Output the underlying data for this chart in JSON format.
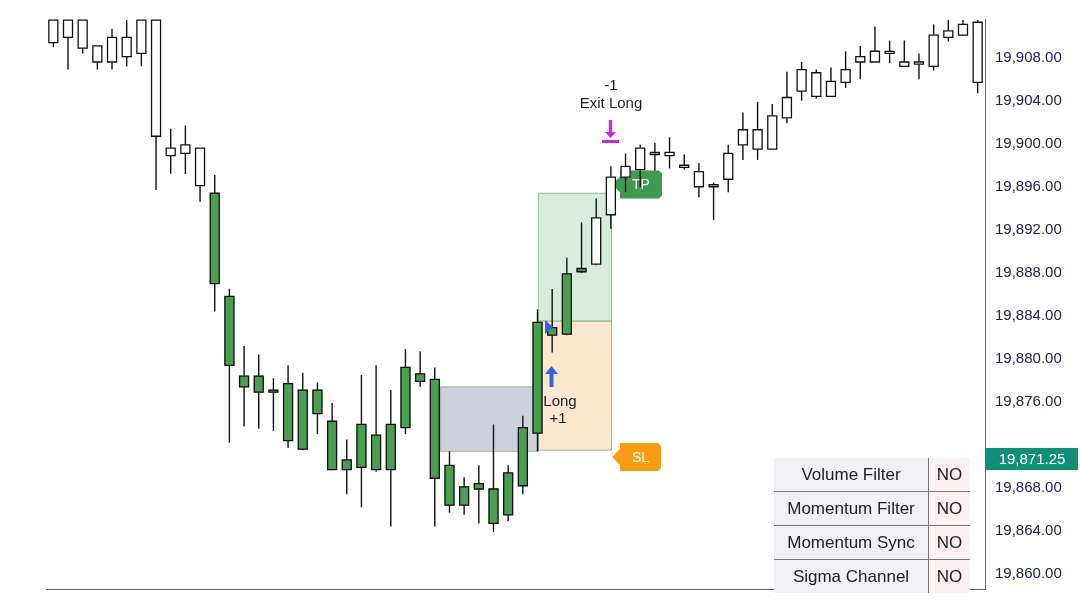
{
  "chart_data": [
    {
      "type": "candlestick",
      "categories": [
        null,
        null,
        null,
        null,
        null,
        null,
        null,
        null,
        null,
        null,
        null,
        null,
        null,
        null,
        null,
        null,
        null,
        null,
        null,
        null,
        null,
        null,
        null,
        null,
        null,
        null,
        null,
        null,
        null,
        null,
        null,
        null,
        null,
        null,
        null,
        null,
        null,
        null,
        null,
        null,
        null,
        null,
        null,
        null,
        null,
        null,
        null,
        null,
        null,
        null,
        null,
        null,
        null,
        null,
        null,
        null,
        null,
        null,
        null,
        null,
        null,
        null,
        null,
        null
      ],
      "ohlc": [
        [
          19909.4,
          19911.5,
          19909.0,
          19911.5
        ],
        [
          19909.9,
          19911.5,
          19906.9,
          19911.5
        ],
        [
          19908.9,
          19911.5,
          19908.4,
          19911.5
        ],
        [
          19907.6,
          19909.1,
          19906.9,
          19909.1
        ],
        [
          19907.6,
          19910.7,
          19906.9,
          19909.9
        ],
        [
          19908.1,
          19911.5,
          19907.2,
          19909.9
        ],
        [
          19908.4,
          19911.5,
          19907.2,
          19911.5
        ],
        [
          19900.7,
          19911.5,
          19895.7,
          19911.5
        ],
        [
          19898.9,
          19901.4,
          19897.2,
          19899.6
        ],
        [
          19899.1,
          19901.7,
          19897.2,
          19899.9
        ],
        [
          19896.1,
          19899.6,
          19894.6,
          19899.6
        ],
        [
          19895.4,
          19897.1,
          19884.4,
          19887.0
        ],
        [
          19885.8,
          19886.5,
          19872.2,
          19879.4
        ],
        [
          19878.4,
          19881.2,
          19873.7,
          19877.4
        ],
        [
          19878.4,
          19880.4,
          19873.5,
          19876.9
        ],
        [
          19877.1,
          19878.2,
          19873.3,
          19876.9
        ],
        [
          19877.7,
          19879.4,
          19871.7,
          19872.4
        ],
        [
          19877.1,
          19878.7,
          19871.5,
          19871.6
        ],
        [
          19877.1,
          19877.8,
          19873.0,
          19874.9
        ],
        [
          19874.2,
          19875.9,
          19869.7,
          19869.7
        ],
        [
          19870.6,
          19872.5,
          19867.4,
          19869.7
        ],
        [
          19873.9,
          19878.5,
          19866.2,
          19869.9
        ],
        [
          19872.9,
          19879.4,
          19869.5,
          19869.7
        ],
        [
          19873.9,
          19877.1,
          19864.4,
          19869.7
        ],
        [
          19879.2,
          19880.9,
          19873.0,
          19873.6
        ],
        [
          19878.6,
          19880.7,
          19877.4,
          19877.9
        ],
        [
          19878.1,
          19879.2,
          19864.4,
          19868.9
        ],
        [
          19870.1,
          19871.4,
          19865.7,
          19866.4
        ],
        [
          19868.1,
          19869.0,
          19865.5,
          19866.4
        ],
        [
          19868.4,
          19870.1,
          19864.7,
          19867.9
        ],
        [
          19867.9,
          19873.9,
          19863.9,
          19864.7
        ],
        [
          19869.4,
          19870.1,
          19864.9,
          19865.5
        ],
        [
          19873.6,
          19874.7,
          19867.4,
          19868.2
        ],
        [
          19883.4,
          19884.6,
          19871.4,
          19873.1
        ],
        [
          19882.9,
          19886.5,
          19880.6,
          19882.2
        ],
        [
          19887.9,
          19889.4,
          19882.2,
          19882.3
        ],
        [
          19888.4,
          19892.7,
          19888.0,
          19888.1
        ],
        [
          19888.8,
          19894.9,
          19888.7,
          19893.1
        ],
        [
          19893.4,
          19897.9,
          19892.1,
          19896.9
        ],
        [
          19896.9,
          19899.1,
          19895.5,
          19897.9
        ],
        [
          19897.6,
          19899.9,
          19896.0,
          19899.6
        ],
        [
          19899.0,
          19900.1,
          19897.5,
          19899.1
        ],
        [
          19898.9,
          19900.6,
          19897.7,
          19899.2
        ],
        [
          19897.8,
          19899.0,
          19897.6,
          19898.0
        ],
        [
          19896.0,
          19898.2,
          19895.0,
          19897.4
        ],
        [
          19896.0,
          19896.4,
          19892.9,
          19896.1
        ],
        [
          19896.7,
          19899.9,
          19895.5,
          19899.1
        ],
        [
          19899.9,
          19902.9,
          19898.5,
          19901.3
        ],
        [
          19899.5,
          19903.9,
          19898.5,
          19901.3
        ],
        [
          19899.5,
          19903.7,
          19899.5,
          19902.6
        ],
        [
          19902.4,
          19906.7,
          19901.9,
          19904.3
        ],
        [
          19904.9,
          19907.6,
          19904.0,
          19906.9
        ],
        [
          19904.4,
          19906.9,
          19904.2,
          19906.6
        ],
        [
          19904.4,
          19907.1,
          19904.4,
          19905.8
        ],
        [
          19905.7,
          19908.6,
          19905.2,
          19906.9
        ],
        [
          19907.6,
          19909.1,
          19906.0,
          19908.1
        ],
        [
          19907.6,
          19910.9,
          19907.6,
          19908.6
        ],
        [
          19908.4,
          19909.6,
          19907.5,
          19908.5
        ],
        [
          19907.2,
          19909.6,
          19907.2,
          19907.6
        ],
        [
          19907.4,
          19908.4,
          19906.0,
          19907.6
        ],
        [
          19907.2,
          19911.1,
          19906.8,
          19910.1
        ],
        [
          19909.9,
          19911.5,
          19909.5,
          19910.5
        ],
        [
          19910.1,
          19911.5,
          19910.1,
          19911.1
        ],
        [
          19905.7,
          19911.5,
          19904.7,
          19911.3
        ]
      ],
      "colors": [
        "#ffffff",
        "#ffffff",
        "#ffffff",
        "#ffffff",
        "#ffffff",
        "#ffffff",
        "#ffffff",
        "#ffffff",
        "#ffffff",
        "#ffffff",
        "#ffffff",
        "#4a9e50",
        "#4a9e50",
        "#4a9e50",
        "#4a9e50",
        "#4a9e50",
        "#4a9e50",
        "#4a9e50",
        "#4a9e50",
        "#4a9e50",
        "#4a9e50",
        "#4a9e50",
        "#4a9e50",
        "#4a9e50",
        "#4a9e50",
        "#4a9e50",
        "#4a9e50",
        "#4a9e50",
        "#4a9e50",
        "#4a9e50",
        "#4a9e50",
        "#4a9e50",
        "#4a9e50",
        "#4a9e50",
        "#4a9e50",
        "#4a9e50",
        "#4a9e50",
        "#ffffff",
        "#ffffff",
        "#ffffff",
        "#ffffff",
        "#ffffff",
        "#ffffff",
        "#ffffff",
        "#ffffff",
        "#ffffff",
        "#ffffff",
        "#ffffff",
        "#ffffff",
        "#ffffff",
        "#ffffff",
        "#ffffff",
        "#ffffff",
        "#ffffff",
        "#ffffff",
        "#ffffff",
        "#ffffff",
        "#ffffff",
        "#ffffff",
        "#ffffff",
        "#ffffff",
        "#ffffff",
        "#ffffff",
        "#ffffff"
      ],
      "ylim": [
        19858.6,
        19911.6
      ],
      "yticks": [
        {
          "value": 19860,
          "label": "19,860.00"
        },
        {
          "value": 19864,
          "label": "19,864.00"
        },
        {
          "value": 19868,
          "label": "19,868.00"
        },
        {
          "value": 19876,
          "label": "19,876.00"
        },
        {
          "value": 19880,
          "label": "19,880.00"
        },
        {
          "value": 19884,
          "label": "19,884.00"
        },
        {
          "value": 19888,
          "label": "19,888.00"
        },
        {
          "value": 19892,
          "label": "19,892.00"
        },
        {
          "value": 19896,
          "label": "19,896.00"
        },
        {
          "value": 19900,
          "label": "19,900.00"
        },
        {
          "value": 19904,
          "label": "19,904.00"
        },
        {
          "value": 19908,
          "label": "19,908.00"
        }
      ],
      "tick_labels": "y",
      "bands": [
        {
          "axis": "y",
          "from": 19883.5,
          "to": 19895.4,
          "color": "#d9ebdc"
        },
        {
          "axis": "y",
          "from": 19871.5,
          "to": 19883.5,
          "color": "#fde8cf"
        },
        {
          "axis": "y",
          "from": 19871.4,
          "to": 19877.4,
          "color": "#d0d0dc"
        }
      ],
      "annotations": [
        "-1",
        "Exit Long",
        "Long",
        "+1",
        "TP",
        "SL",
        "19,871.25"
      ]
    },
    {
      "type": "other",
      "annotations": [
        "Volume Filter",
        "NO",
        "Momentum Filter",
        "NO",
        "Momentum Sync",
        "NO",
        "Sigma Channel",
        "NO"
      ]
    }
  ]
}
